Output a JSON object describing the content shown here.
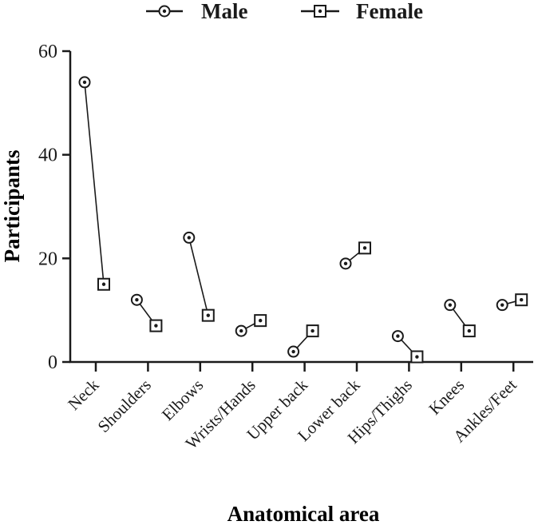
{
  "chart_data": {
    "type": "scatter",
    "title": "",
    "xlabel": "Anatomical area",
    "ylabel": "Participants",
    "ylim": [
      0,
      60
    ],
    "yticks": [
      0,
      20,
      40,
      60
    ],
    "grid": false,
    "legend_position": "top-center",
    "categories": [
      "Neck",
      "Shoulders",
      "Elbows",
      "Wrists/Hands",
      "Upper back",
      "Lower back",
      "Hips/Thighs",
      "Knees",
      "Ankles/Feet"
    ],
    "series": [
      {
        "name": "Male",
        "marker": "circle-dot",
        "values": [
          54,
          12,
          24,
          6,
          2,
          19,
          5,
          11,
          11
        ]
      },
      {
        "name": "Female",
        "marker": "square-dot",
        "values": [
          15,
          7,
          9,
          8,
          6,
          22,
          1,
          6,
          12
        ]
      }
    ],
    "colors": {
      "ink": "#1a1a1a"
    }
  }
}
